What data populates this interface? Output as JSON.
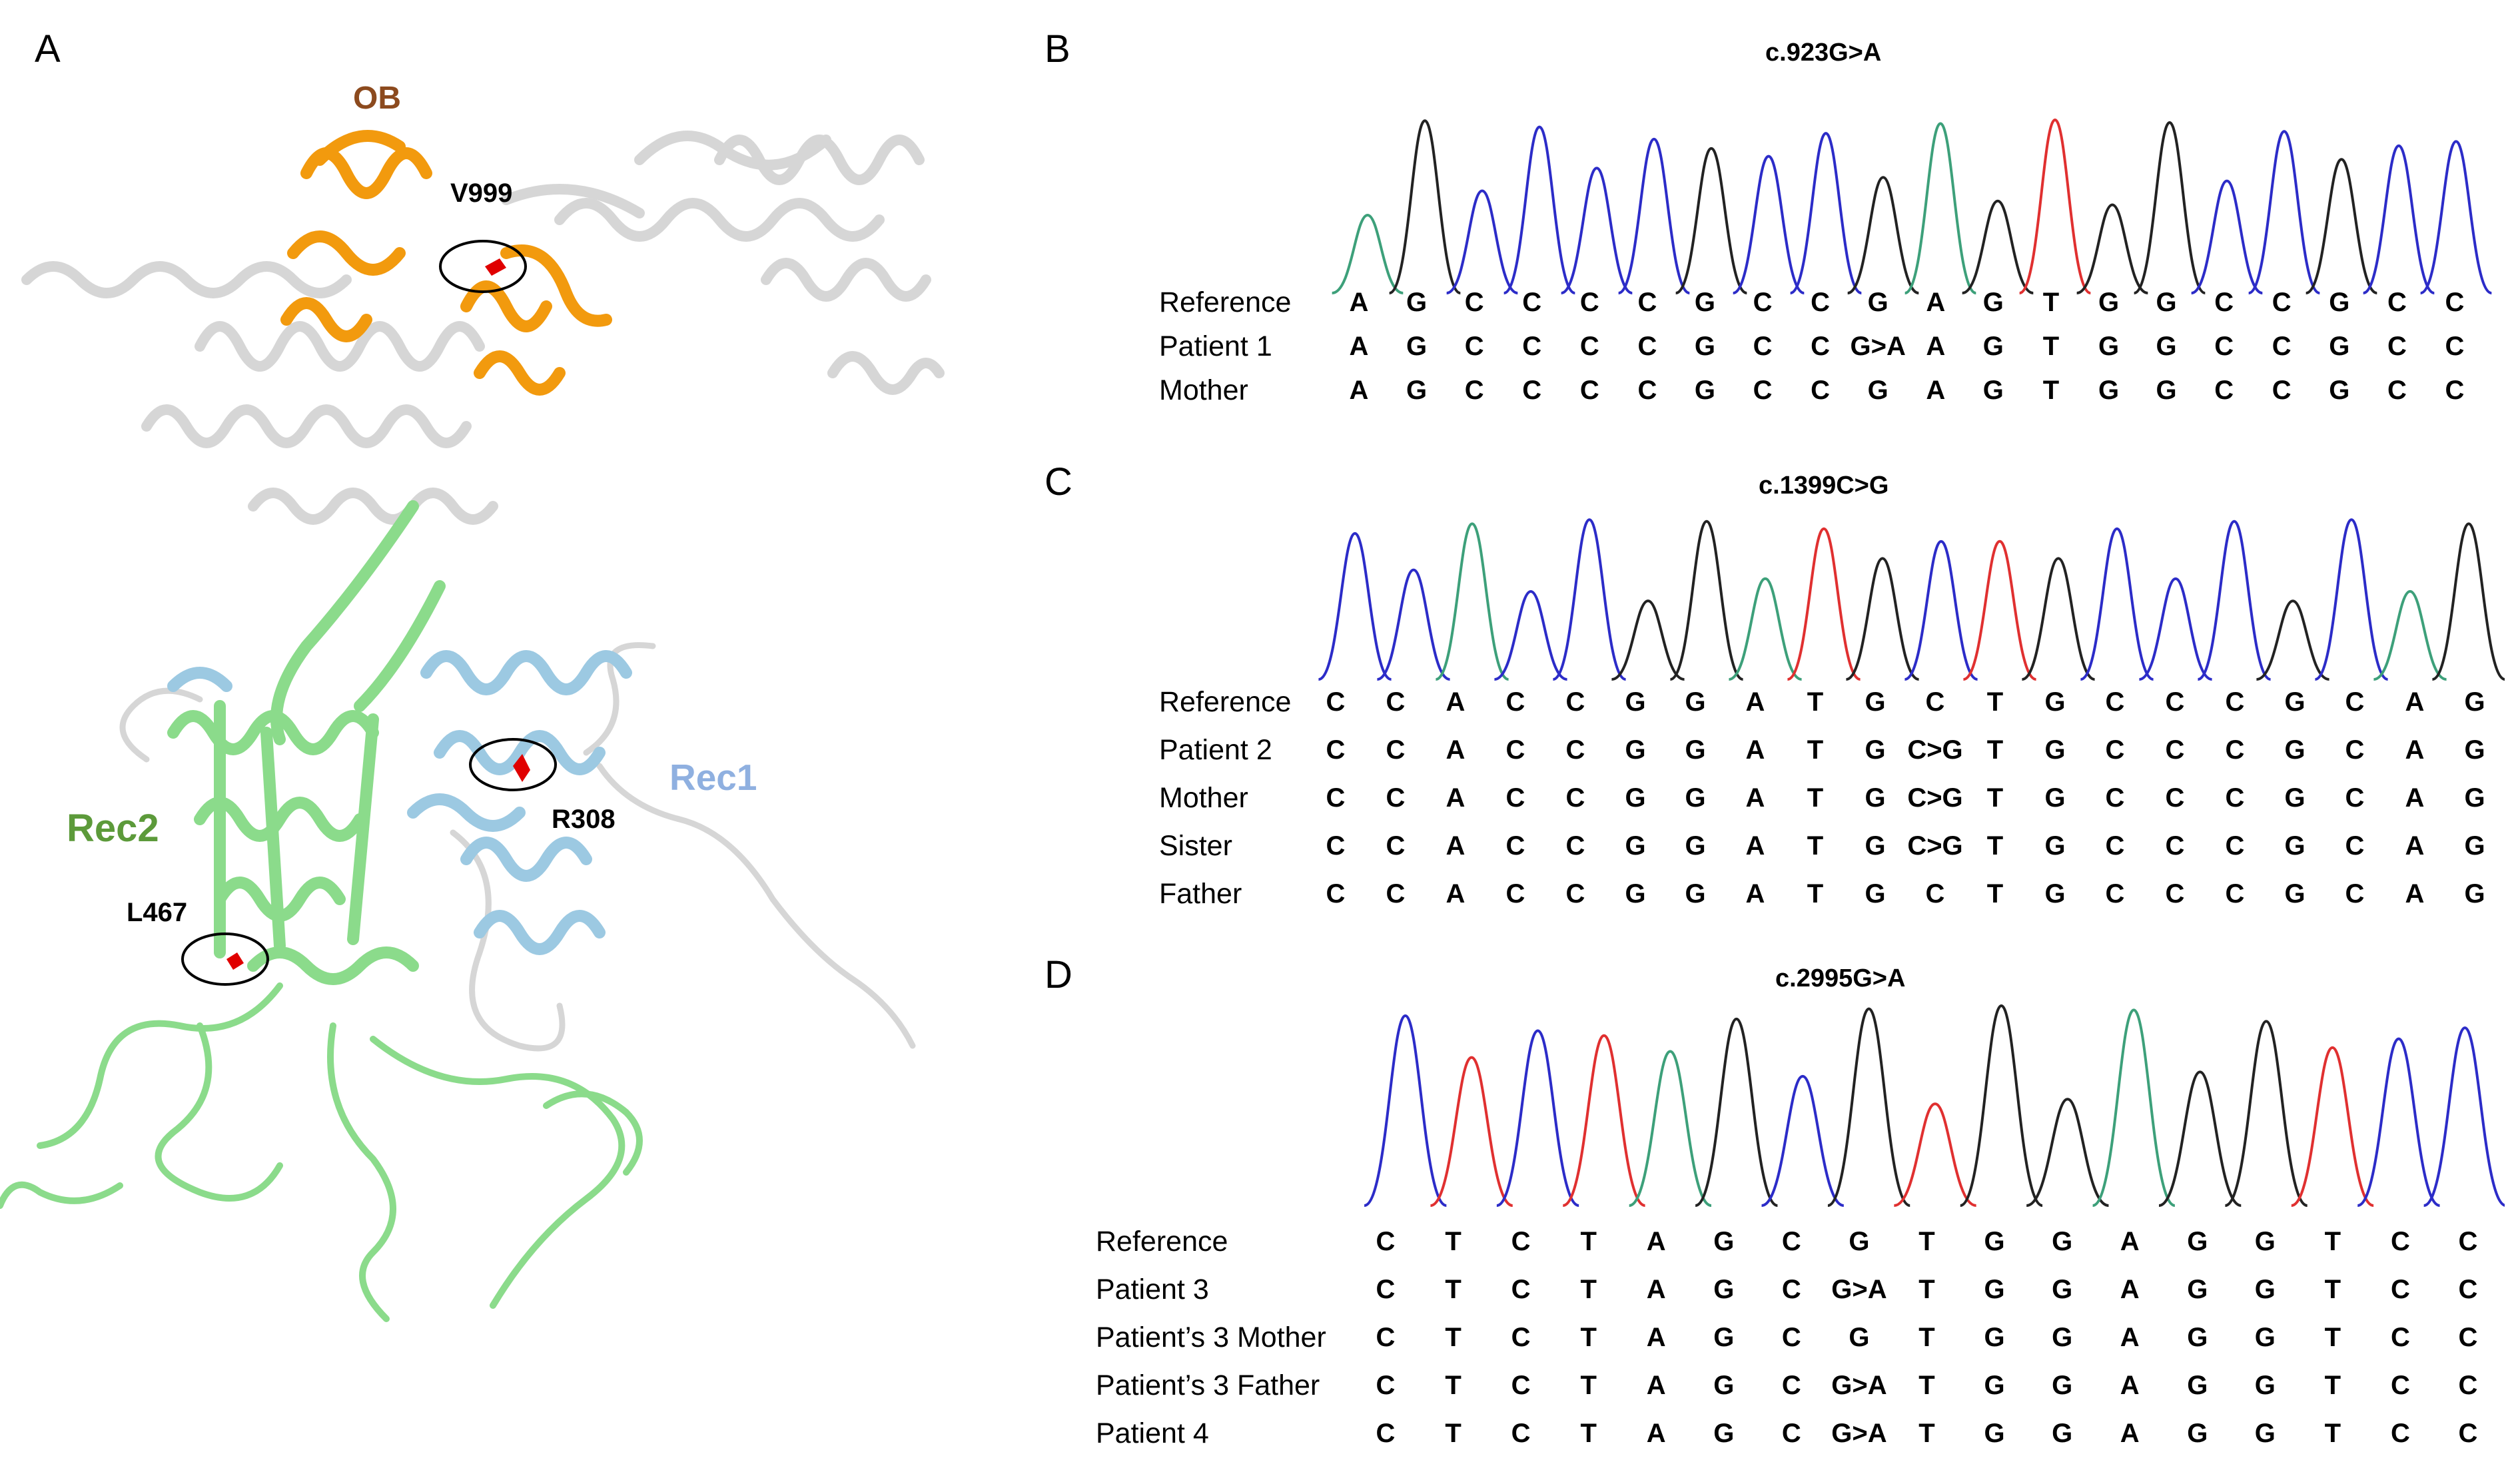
{
  "panels": {
    "a": "A",
    "b": "B",
    "c": "C",
    "d": "D"
  },
  "structure": {
    "domains": {
      "ob": "OB",
      "rec1": "Rec1",
      "rec2": "Rec2"
    },
    "residues": {
      "v999": "V999",
      "r308": "R308",
      "l467": "L467"
    },
    "colors": {
      "ob": "#F29A0E",
      "rec1": "#9CC9E2",
      "rec2": "#8BDB8B",
      "other": "#D8D8D8",
      "mutation": "#E00000",
      "ob_label": "#8C4A1E",
      "rec1_label": "#8FB0E0",
      "rec2_label": "#5C9A3A"
    }
  },
  "trace_colors": {
    "A": "#3DA07A",
    "G": "#222222",
    "C": "#2C2CC8",
    "T": "#E03030"
  },
  "sequencing": [
    {
      "title": "c.923G>A",
      "rows": [
        {
          "label": "Reference",
          "bases": [
            "A",
            "G",
            "C",
            "C",
            "C",
            "C",
            "G",
            "C",
            "C",
            "G",
            "A",
            "G",
            "T",
            "G",
            "G",
            "C",
            "C",
            "G",
            "C",
            "C"
          ]
        },
        {
          "label": "Patient 1",
          "bases": [
            "A",
            "G",
            "C",
            "C",
            "C",
            "C",
            "G",
            "C",
            "C",
            "G>A",
            "A",
            "G",
            "T",
            "G",
            "G",
            "C",
            "C",
            "G",
            "C",
            "C"
          ]
        },
        {
          "label": "Mother",
          "bases": [
            "A",
            "G",
            "C",
            "C",
            "C",
            "C",
            "G",
            "C",
            "C",
            "G",
            "A",
            "G",
            "T",
            "G",
            "G",
            "C",
            "C",
            "G",
            "C",
            "C"
          ]
        }
      ],
      "trace": [
        "A",
        "G",
        "C",
        "C",
        "C",
        "C",
        "G",
        "C",
        "C",
        "G",
        "A",
        "G",
        "T",
        "G",
        "G",
        "C",
        "C",
        "G",
        "C",
        "C"
      ]
    },
    {
      "title": "c.1399C>G",
      "rows": [
        {
          "label": "Reference",
          "bases": [
            "C",
            "C",
            "A",
            "C",
            "C",
            "G",
            "G",
            "A",
            "T",
            "G",
            "C",
            "T",
            "G",
            "C",
            "C",
            "C",
            "G",
            "C",
            "A",
            "G"
          ]
        },
        {
          "label": "Patient 2",
          "bases": [
            "C",
            "C",
            "A",
            "C",
            "C",
            "G",
            "G",
            "A",
            "T",
            "G",
            "C>G",
            "T",
            "G",
            "C",
            "C",
            "C",
            "G",
            "C",
            "A",
            "G"
          ]
        },
        {
          "label": "Mother",
          "bases": [
            "C",
            "C",
            "A",
            "C",
            "C",
            "G",
            "G",
            "A",
            "T",
            "G",
            "C>G",
            "T",
            "G",
            "C",
            "C",
            "C",
            "G",
            "C",
            "A",
            "G"
          ]
        },
        {
          "label": "Sister",
          "bases": [
            "C",
            "C",
            "A",
            "C",
            "C",
            "G",
            "G",
            "A",
            "T",
            "G",
            "C>G",
            "T",
            "G",
            "C",
            "C",
            "C",
            "G",
            "C",
            "A",
            "G"
          ]
        },
        {
          "label": "Father",
          "bases": [
            "C",
            "C",
            "A",
            "C",
            "C",
            "G",
            "G",
            "A",
            "T",
            "G",
            "C",
            "T",
            "G",
            "C",
            "C",
            "C",
            "G",
            "C",
            "A",
            "G"
          ]
        }
      ],
      "trace": [
        "C",
        "C",
        "A",
        "C",
        "C",
        "G",
        "G",
        "A",
        "T",
        "G",
        "C",
        "T",
        "G",
        "C",
        "C",
        "C",
        "G",
        "C",
        "A",
        "G"
      ]
    },
    {
      "title": "c.2995G>A",
      "rows": [
        {
          "label": "Reference",
          "bases": [
            "C",
            "T",
            "C",
            "T",
            "A",
            "G",
            "C",
            "G",
            "T",
            "G",
            "G",
            "A",
            "G",
            "G",
            "T",
            "C",
            "C"
          ]
        },
        {
          "label": "Patient 3",
          "bases": [
            "C",
            "T",
            "C",
            "T",
            "A",
            "G",
            "C",
            "G>A",
            "T",
            "G",
            "G",
            "A",
            "G",
            "G",
            "T",
            "C",
            "C"
          ]
        },
        {
          "label": "Patient’s 3 Mother",
          "bases": [
            "C",
            "T",
            "C",
            "T",
            "A",
            "G",
            "C",
            "G",
            "T",
            "G",
            "G",
            "A",
            "G",
            "G",
            "T",
            "C",
            "C"
          ]
        },
        {
          "label": "Patient’s 3 Father",
          "bases": [
            "C",
            "T",
            "C",
            "T",
            "A",
            "G",
            "C",
            "G>A",
            "T",
            "G",
            "G",
            "A",
            "G",
            "G",
            "T",
            "C",
            "C"
          ]
        },
        {
          "label": "Patient 4",
          "bases": [
            "C",
            "T",
            "C",
            "T",
            "A",
            "G",
            "C",
            "G>A",
            "T",
            "G",
            "G",
            "A",
            "G",
            "G",
            "T",
            "C",
            "C"
          ]
        }
      ],
      "trace": [
        "C",
        "T",
        "C",
        "T",
        "A",
        "G",
        "C",
        "G",
        "T",
        "G",
        "G",
        "A",
        "G",
        "G",
        "T",
        "C",
        "C"
      ]
    }
  ]
}
